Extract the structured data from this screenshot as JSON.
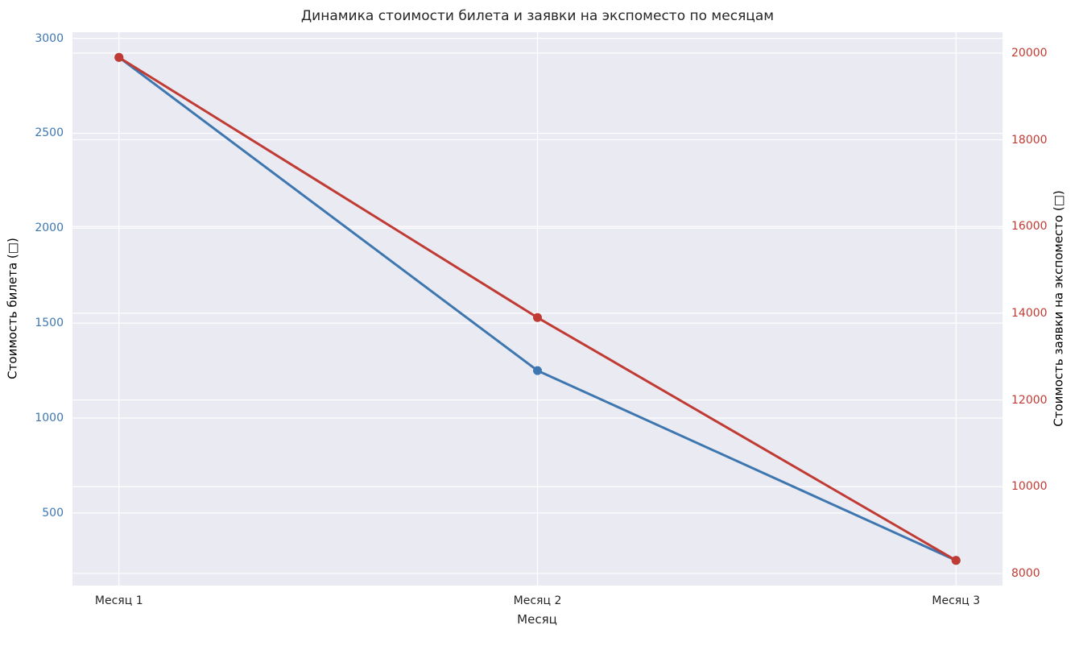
{
  "chart_data": {
    "type": "line",
    "title": "Динамика стоимости билета и заявки на экспоместо по месяцам",
    "xlabel": "Месяц",
    "categories": [
      "Месяц 1",
      "Месяц 2",
      "Месяц 3"
    ],
    "series": [
      {
        "id": "ticket",
        "name": "Стоимость билета (□)",
        "axis": "left",
        "color": "#3e77b0",
        "values": [
          2900,
          1250,
          250
        ]
      },
      {
        "id": "expo",
        "name": "Стоимость заявки на экспоместо (□)",
        "axis": "right",
        "color": "#c03b33",
        "values": [
          19900,
          13900,
          8300
        ]
      }
    ],
    "left_axis": {
      "label": "Стоимость билета (□)",
      "color": "#3e77b0",
      "ticks": [
        500,
        1000,
        1500,
        2000,
        2500,
        3000
      ],
      "ylim": [
        117.5,
        3032.5
      ]
    },
    "right_axis": {
      "label": "Стоимость заявки на экспоместо (□)",
      "color": "#c03b33",
      "ticks": [
        8000,
        10000,
        12000,
        14000,
        16000,
        18000,
        20000
      ],
      "ylim": [
        7720,
        20480
      ]
    },
    "grid": true,
    "plot_bg": "#eaeaf2",
    "grid_color": "#ffffff",
    "legend": "none"
  }
}
